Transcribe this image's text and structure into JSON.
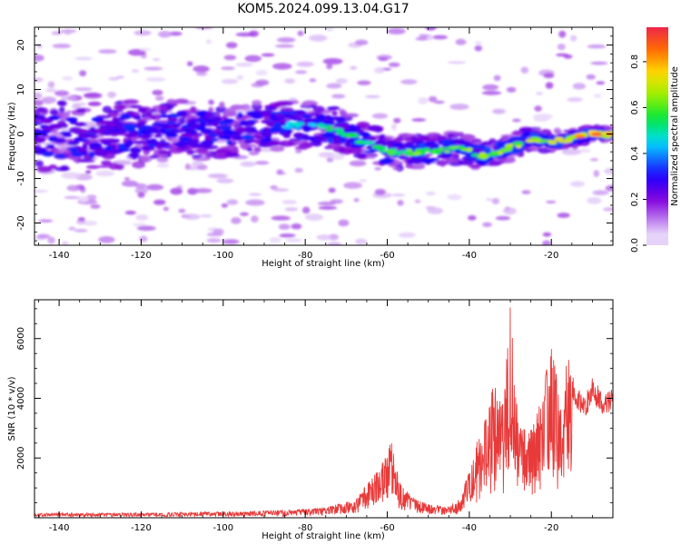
{
  "figure": {
    "title": "KOM5.2024.099.13.04.G17"
  },
  "chart_data": [
    {
      "type": "heatmap",
      "xlabel": "Height of straight line (km)",
      "ylabel": "Frequency (Hz)",
      "xlim": [
        -146,
        -5
      ],
      "ylim": [
        -25,
        24
      ],
      "xticks": [
        -140,
        -120,
        -100,
        -80,
        -60,
        -40,
        -20
      ],
      "xtick_labels": [
        "-140",
        "-120",
        "-100",
        "-80",
        "-60",
        "-40",
        "-20"
      ],
      "yticks": [
        20,
        10,
        0,
        -10,
        -20
      ],
      "ytick_labels": [
        "20",
        "10",
        "0",
        "-10",
        "-20"
      ],
      "ridge": [
        {
          "x": -145,
          "y": 0
        },
        {
          "x": -130,
          "y": -1
        },
        {
          "x": -115,
          "y": 1
        },
        {
          "x": -100,
          "y": 1
        },
        {
          "x": -85,
          "y": 2
        },
        {
          "x": -80,
          "y": 2
        },
        {
          "x": -72,
          "y": 1
        },
        {
          "x": -65,
          "y": -2
        },
        {
          "x": -60,
          "y": -4
        },
        {
          "x": -50,
          "y": -4
        },
        {
          "x": -42,
          "y": -3
        },
        {
          "x": -37,
          "y": -5
        },
        {
          "x": -30,
          "y": -3
        },
        {
          "x": -25,
          "y": -1
        },
        {
          "x": -20,
          "y": -2
        },
        {
          "x": -15,
          "y": -1
        },
        {
          "x": -10,
          "y": 0
        },
        {
          "x": -5,
          "y": 0
        }
      ],
      "colorbar": {
        "label": "Normalized spectral amplitude",
        "range": [
          0,
          0.95
        ],
        "ticks": [
          0.0,
          0.2,
          0.4,
          0.6,
          0.8
        ],
        "tick_labels": [
          "0.0",
          "0.2",
          "0.4",
          "0.6",
          "0.8"
        ]
      }
    },
    {
      "type": "line",
      "xlabel": "Height of straight line (km)",
      "ylabel": "SNR (10 * v/v)",
      "xlim": [
        -146,
        -5
      ],
      "ylim": [
        0,
        7300
      ],
      "xticks": [
        -140,
        -120,
        -100,
        -80,
        -60,
        -40,
        -20
      ],
      "xtick_labels": [
        "-140",
        "-120",
        "-100",
        "-80",
        "-60",
        "-40",
        "-20"
      ],
      "yticks": [
        2000,
        4000,
        6000
      ],
      "ytick_labels": [
        "2000",
        "4000",
        "6000"
      ],
      "line_color": "#e83a3a",
      "envelope": [
        {
          "x": -146,
          "y": 150
        },
        {
          "x": -120,
          "y": 160
        },
        {
          "x": -100,
          "y": 200
        },
        {
          "x": -85,
          "y": 250
        },
        {
          "x": -75,
          "y": 350
        },
        {
          "x": -68,
          "y": 600
        },
        {
          "x": -64,
          "y": 1300
        },
        {
          "x": -61,
          "y": 1900
        },
        {
          "x": -59,
          "y": 2600
        },
        {
          "x": -57,
          "y": 1200
        },
        {
          "x": -54,
          "y": 700
        },
        {
          "x": -50,
          "y": 450
        },
        {
          "x": -45,
          "y": 380
        },
        {
          "x": -42,
          "y": 700
        },
        {
          "x": -39,
          "y": 2200
        },
        {
          "x": -36,
          "y": 3500
        },
        {
          "x": -34,
          "y": 4600
        },
        {
          "x": -32,
          "y": 3800
        },
        {
          "x": -30,
          "y": 7300
        },
        {
          "x": -28,
          "y": 3500
        },
        {
          "x": -26,
          "y": 2800
        },
        {
          "x": -24,
          "y": 3200
        },
        {
          "x": -22,
          "y": 4300
        },
        {
          "x": -20,
          "y": 6100
        },
        {
          "x": -18,
          "y": 4200
        },
        {
          "x": -16,
          "y": 5400
        },
        {
          "x": -14,
          "y": 4500
        },
        {
          "x": -12,
          "y": 4000
        },
        {
          "x": -10,
          "y": 4700
        },
        {
          "x": -7,
          "y": 4100
        },
        {
          "x": -5,
          "y": 4500
        }
      ]
    }
  ]
}
